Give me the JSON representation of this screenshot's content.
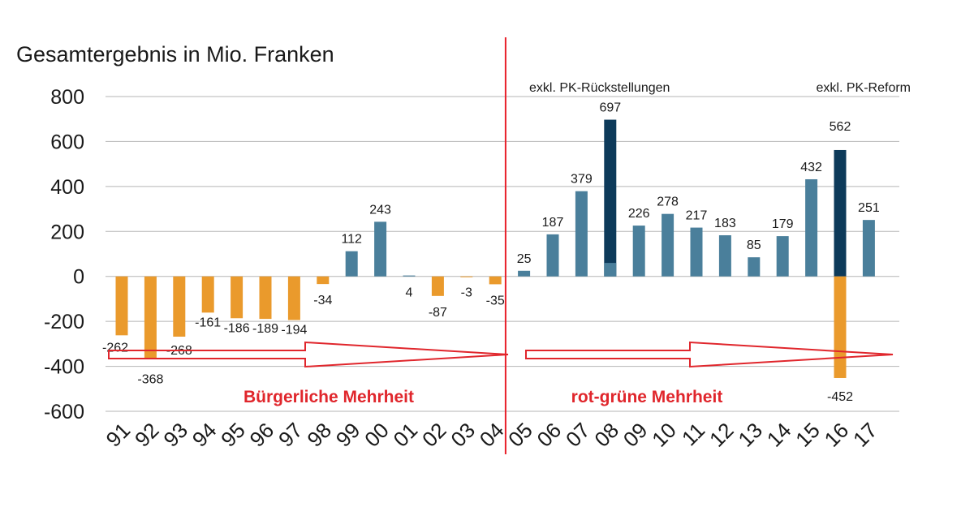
{
  "chart_data": {
    "type": "bar",
    "title": "Gesamtergebnis in Mio. Franken",
    "xlabel": "",
    "ylabel": "",
    "ylim": [
      -600,
      800
    ],
    "yticks": [
      800,
      600,
      400,
      200,
      0,
      -200,
      -400,
      -600
    ],
    "ytick_labels": [
      "800",
      "600",
      "400",
      "200",
      "0",
      "-200",
      "-400",
      "-600"
    ],
    "grid": true,
    "categories": [
      "91",
      "92",
      "93",
      "94",
      "95",
      "96",
      "97",
      "98",
      "99",
      "00",
      "01",
      "02",
      "03",
      "04",
      "05",
      "06",
      "07",
      "08",
      "09",
      "10",
      "11",
      "12",
      "13",
      "14",
      "15",
      "16",
      "17"
    ],
    "values": [
      -262,
      -368,
      -268,
      -161,
      -186,
      -189,
      -194,
      -34,
      112,
      243,
      4,
      -87,
      -3,
      -35,
      25,
      187,
      379,
      697,
      226,
      278,
      217,
      183,
      85,
      179,
      432,
      562,
      251
    ],
    "value_labels": [
      "-262",
      "-368",
      "-268",
      "-161",
      "-186",
      "-189",
      "-194",
      "-34",
      "112",
      "243",
      "4",
      "-87",
      "-3",
      "-35",
      "25",
      "187",
      "379",
      "697",
      "226",
      "278",
      "217",
      "183",
      "85",
      "179",
      "432",
      "562",
      "251"
    ],
    "base_overlays": [
      {
        "category": "08",
        "value": 60
      },
      {
        "category": "16",
        "value": -452,
        "label": "-452"
      }
    ],
    "annotations": [
      {
        "category": "08",
        "text": "exkl. PK-Rückstellungen"
      },
      {
        "category": "16",
        "text": "exkl. PK-Reform"
      }
    ],
    "divider_after": "04",
    "eras": [
      {
        "label": "Bürgerliche Mehrheit",
        "from": "91",
        "to": "04"
      },
      {
        "label": "rot-grüne Mehrheit",
        "from": "05",
        "to": "17"
      }
    ],
    "colors": {
      "positive": "#4a7f9b",
      "negative": "#ea9a2c",
      "highlight": "#0d3a5a",
      "divider": "#e8202a",
      "arrow": "#e0262c",
      "era_text": "#e0262c",
      "grid": "#b5b5b5"
    }
  }
}
